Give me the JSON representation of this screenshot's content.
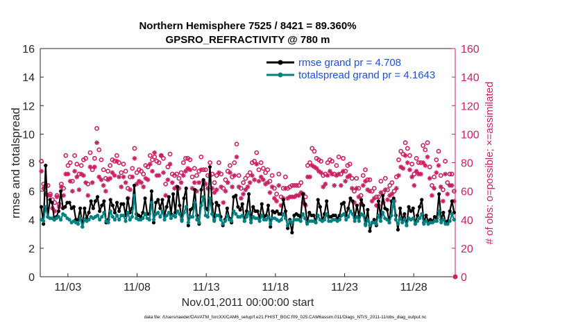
{
  "chart_data": {
    "type": "line",
    "title_line1": "Northern Hemisphere 7525 / 8421 = 89.360%",
    "title_line2": "GPSRO_REFRACTIVITY @ 780 m",
    "xlabel": "Nov.01,2011 00:00:00 start",
    "ylabel_left": "rmse and totalspread",
    "ylabel_right": "# of obs: o=possible; ×=assimilated",
    "x_range_days": [
      0.5,
      30.5
    ],
    "ylim_left": [
      0,
      16
    ],
    "ylim_right": [
      0,
      160
    ],
    "x_ticks": [
      {
        "day": 2.5,
        "label": "11/03"
      },
      {
        "day": 7.5,
        "label": "11/08"
      },
      {
        "day": 12.5,
        "label": "11/13"
      },
      {
        "day": 17.5,
        "label": "11/18"
      },
      {
        "day": 22.5,
        "label": "11/23"
      },
      {
        "day": 27.5,
        "label": "11/28"
      }
    ],
    "y_ticks_left": [
      "0",
      "2",
      "4",
      "6",
      "8",
      "10",
      "12",
      "14",
      "16"
    ],
    "y_ticks_right": [
      "0",
      "20",
      "40",
      "60",
      "80",
      "100",
      "120",
      "140",
      "160"
    ],
    "legend": [
      {
        "label": "rmse grand pr = 4.708",
        "color": "#000000"
      },
      {
        "label": "totalspread grand pr = 4.1643",
        "color": "#008080"
      }
    ],
    "series": [
      {
        "name": "rmse",
        "axis": "left",
        "color": "#000000",
        "values": [
          4.9,
          3.7,
          7.8,
          4.2,
          5.4,
          5.2,
          4.0,
          4.2,
          4.6,
          6.0,
          4.8,
          4.9,
          5.2,
          5.2,
          4.8,
          4.9,
          4.0,
          4.0,
          4.8,
          3.5,
          4.8,
          4.1,
          4.5,
          5.3,
          4.8,
          5.3,
          5.6,
          4.6,
          5.0,
          5.3,
          3.8,
          4.0,
          5.4,
          5.0,
          4.5,
          5.2,
          4.6,
          5.1,
          5.1,
          4.3,
          5.5,
          4.5,
          4.8,
          6.4,
          4.4,
          4.3,
          4.2,
          4.5,
          5.5,
          4.4,
          4.4,
          6.0,
          3.8,
          5.2,
          5.4,
          4.8,
          5.4,
          4.3,
          4.9,
          5.6,
          4.4,
          5.8,
          4.5,
          6.3,
          5.0,
          4.0,
          5.5,
          6.2,
          3.6,
          4.7,
          4.8,
          6.1,
          4.3,
          3.7,
          6.1,
          6.8,
          4.8,
          4.7,
          7.7,
          5.1,
          4.0,
          5.2,
          5.0,
          4.2,
          3.6,
          4.0,
          4.8,
          4.1,
          3.8,
          5.6,
          5.7,
          4.9,
          4.7,
          5.1,
          3.9,
          4.6,
          5.8,
          4.0,
          4.9,
          4.6,
          4.6,
          4.1,
          5.1,
          4.2,
          4.3,
          5.0,
          3.5,
          4.6,
          4.5,
          4.6,
          4.4,
          4.4,
          5.4,
          4.6,
          3.4,
          4.0,
          3.1,
          4.3,
          4.4,
          4.3,
          4.2,
          5.8,
          5.1,
          3.8,
          4.5,
          4.3,
          4.3,
          3.8,
          5.4,
          4.9,
          3.9,
          4.4,
          5.3,
          4.2,
          4.2,
          4.3,
          4.3,
          4.1,
          4.3,
          5.1,
          5.2,
          4.3,
          4.8,
          5.5,
          5.3,
          4.1,
          5.0,
          4.2,
          5.4,
          5.0,
          3.7,
          4.7,
          3.2,
          3.8,
          4.0,
          3.6,
          5.3,
          4.2,
          5.7,
          4.8,
          4.7,
          3.8,
          5.3,
          5.5,
          4.3,
          3.3,
          4.8,
          4.0,
          4.4,
          3.6,
          4.9,
          4.6,
          4.8,
          3.7,
          4.3,
          4.9,
          5.4,
          3.8,
          4.3,
          3.9,
          4.0,
          3.9,
          4.2,
          4.1,
          5.8,
          4.0,
          4.5,
          3.8,
          3.9,
          4.6,
          5.3,
          4.5
        ]
      },
      {
        "name": "totalspread",
        "axis": "left",
        "color": "#008080",
        "values": [
          4.0,
          3.9,
          4.9,
          4.2,
          4.1,
          4.1,
          4.0,
          4.1,
          4.2,
          4.0,
          4.4,
          4.3,
          4.1,
          4.0,
          3.8,
          3.9,
          3.8,
          3.7,
          4.1,
          3.5,
          4.0,
          3.9,
          4.0,
          4.2,
          4.1,
          4.2,
          4.3,
          4.0,
          4.2,
          4.5,
          3.9,
          3.8,
          4.6,
          4.2,
          4.0,
          4.3,
          4.0,
          4.3,
          4.3,
          3.9,
          4.5,
          4.0,
          4.2,
          5.7,
          4.1,
          4.0,
          4.0,
          4.1,
          4.4,
          4.1,
          4.0,
          5.2,
          4.0,
          4.4,
          4.5,
          4.2,
          4.6,
          4.0,
          4.3,
          4.5,
          4.1,
          4.3,
          4.2,
          4.6,
          4.4,
          3.9,
          4.5,
          4.9,
          3.8,
          4.2,
          4.2,
          5.2,
          4.0,
          3.8,
          5.0,
          5.6,
          4.3,
          4.2,
          5.5,
          4.4,
          3.9,
          4.3,
          4.3,
          4.0,
          3.7,
          3.9,
          4.3,
          4.0,
          3.9,
          4.6,
          4.4,
          4.2,
          4.2,
          4.3,
          3.9,
          4.2,
          4.5,
          3.8,
          4.2,
          4.1,
          4.1,
          3.9,
          4.3,
          4.0,
          4.0,
          4.2,
          3.7,
          4.1,
          4.1,
          4.0,
          3.9,
          4.0,
          4.4,
          4.1,
          3.6,
          3.9,
          3.8,
          4.0,
          4.0,
          4.0,
          3.9,
          4.4,
          4.1,
          3.7,
          3.9,
          3.9,
          3.9,
          3.8,
          4.3,
          4.0,
          3.9,
          4.0,
          4.4,
          3.9,
          3.9,
          4.0,
          4.0,
          3.9,
          4.0,
          4.3,
          4.4,
          4.0,
          4.2,
          4.6,
          4.4,
          3.9,
          4.2,
          3.9,
          4.4,
          4.3,
          3.6,
          4.0,
          3.6,
          3.8,
          3.8,
          3.7,
          4.3,
          3.9,
          4.5,
          4.1,
          4.0,
          3.8,
          4.3,
          5.3,
          4.0,
          3.7,
          4.1,
          3.8,
          4.0,
          3.6,
          4.1,
          4.0,
          4.1,
          3.7,
          3.9,
          4.1,
          4.4,
          3.7,
          3.9,
          3.7,
          3.8,
          3.8,
          3.9,
          3.9,
          4.6,
          3.8,
          4.0,
          3.7,
          3.7,
          3.9,
          4.4,
          4.0
        ]
      },
      {
        "name": "possible",
        "axis": "right",
        "color": "#cc1f66",
        "marker": "o",
        "values": [
          81,
          65,
          64,
          64,
          58,
          54,
          52,
          57,
          51,
          65,
          62,
          85,
          78,
          80,
          67,
          85,
          79,
          72,
          78,
          82,
          83,
          65,
          87,
          75,
          83,
          104,
          89,
          82,
          75,
          69,
          74,
          78,
          82,
          81,
          85,
          80,
          73,
          79,
          74,
          62,
          70,
          76,
          90,
          73,
          75,
          74,
          72,
          78,
          77,
          85,
          82,
          84,
          81,
          80,
          85,
          83,
          65,
          77,
          86,
          72,
          71,
          72,
          69,
          73,
          80,
          83,
          83,
          82,
          70,
          76,
          71,
          74,
          84,
          75,
          75,
          71,
          80,
          72,
          66,
          71,
          80,
          72,
          62,
          68,
          74,
          78,
          70,
          80,
          93,
          71,
          62,
          66,
          69,
          71,
          73,
          80,
          81,
          87,
          75,
          80,
          76,
          73,
          75,
          67,
          71,
          62,
          58,
          72,
          56,
          62,
          70,
          62,
          63,
          64,
          64,
          64,
          64,
          66,
          58,
          56,
          78,
          80,
          90,
          88,
          83,
          82,
          81,
          71,
          72,
          80,
          82,
          81,
          72,
          78,
          84,
          72,
          83,
          74,
          78,
          79,
          69,
          60,
          69,
          62,
          57,
          71,
          75,
          68,
          68,
          60,
          62,
          56,
          56,
          67,
          59,
          69,
          61,
          64,
          66,
          60,
          70,
          82,
          88,
          86,
          94,
          90,
          85,
          79,
          72,
          83,
          80,
          80,
          92,
          89,
          94,
          77,
          64,
          70,
          82,
          88,
          71,
          61,
          81,
          66,
          72,
          72,
          60
        ]
      },
      {
        "name": "assimilated",
        "axis": "right",
        "color": "#cc1f66",
        "marker": "*",
        "values": [
          74,
          62,
          58,
          57,
          57,
          48,
          46,
          56,
          49,
          63,
          57,
          72,
          72,
          67,
          60,
          74,
          70,
          61,
          72,
          71,
          66,
          57,
          77,
          66,
          77,
          94,
          70,
          68,
          64,
          60,
          68,
          69,
          73,
          71,
          81,
          70,
          63,
          70,
          66,
          55,
          61,
          70,
          83,
          65,
          67,
          66,
          63,
          69,
          68,
          79,
          74,
          87,
          71,
          71,
          85,
          73,
          57,
          68,
          79,
          66,
          62,
          63,
          62,
          66,
          71,
          74,
          76,
          75,
          62,
          66,
          60,
          66,
          75,
          67,
          65,
          62,
          71,
          62,
          59,
          61,
          73,
          63,
          52,
          60,
          66,
          73,
          63,
          71,
          84,
          63,
          55,
          58,
          61,
          63,
          66,
          71,
          68,
          79,
          67,
          70,
          68,
          65,
          66,
          59,
          63,
          55,
          53,
          64,
          50,
          55,
          62,
          55,
          56,
          56,
          56,
          57,
          57,
          59,
          52,
          50,
          70,
          70,
          78,
          77,
          76,
          74,
          73,
          63,
          65,
          71,
          74,
          72,
          64,
          71,
          72,
          64,
          74,
          67,
          70,
          71,
          62,
          52,
          62,
          56,
          51,
          64,
          67,
          61,
          60,
          53,
          55,
          50,
          50,
          59,
          52,
          61,
          54,
          57,
          58,
          53,
          62,
          71,
          77,
          76,
          85,
          80,
          75,
          70,
          64,
          74,
          72,
          72,
          80,
          78,
          84,
          69,
          57,
          62,
          73,
          78,
          63,
          53,
          72,
          58,
          64,
          64,
          53
        ]
      }
    ]
  },
  "footer": "data file: /Users/raeder/DAI/ATM_forcXX/CAM6_setup/f.e21.FHIST_BGC.f09_025.CAM6assim.011/Diags_NTrS_2011-11/obs_diag_output.nc",
  "colors": {
    "rmse": "#000000",
    "spread": "#008080",
    "obs": "#cc1f66",
    "legend_text": "#1f4fd6"
  }
}
